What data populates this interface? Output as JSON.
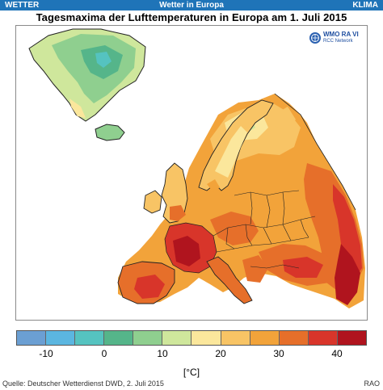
{
  "header": {
    "left_label": "WETTER",
    "center_label": "Wetter in Europa",
    "right_label": "KLIMA"
  },
  "title": "Tagesmaxima der Lufttemperaturen in Europa am 1. Juli 2015",
  "logo": {
    "line1": "WMO RA VI",
    "line2": "RCC Network",
    "icon": "wmo-emblem-icon"
  },
  "legend": {
    "unit": "[°C]",
    "ticks": [
      {
        "label": "-10",
        "value": -10
      },
      {
        "label": "0",
        "value": 0
      },
      {
        "label": "10",
        "value": 10
      },
      {
        "label": "20",
        "value": 20
      },
      {
        "label": "30",
        "value": 30
      },
      {
        "label": "40",
        "value": 40
      }
    ],
    "range": [
      -15,
      45
    ],
    "classes": [
      {
        "from": -15,
        "to": -10,
        "color": "#6b9fd3"
      },
      {
        "from": -10,
        "to": -5,
        "color": "#5bb6e0"
      },
      {
        "from": -5,
        "to": 0,
        "color": "#55c3c0"
      },
      {
        "from": 0,
        "to": 5,
        "color": "#55b58a"
      },
      {
        "from": 5,
        "to": 10,
        "color": "#8fcf8f"
      },
      {
        "from": 10,
        "to": 15,
        "color": "#cfe79c"
      },
      {
        "from": 15,
        "to": 20,
        "color": "#fbe79c"
      },
      {
        "from": 20,
        "to": 25,
        "color": "#f8c465"
      },
      {
        "from": 25,
        "to": 30,
        "color": "#f2a33a"
      },
      {
        "from": 30,
        "to": 35,
        "color": "#e66f2a"
      },
      {
        "from": 35,
        "to": 40,
        "color": "#d8352a"
      },
      {
        "from": 40,
        "to": 45,
        "color": "#b0141e"
      }
    ]
  },
  "footer": {
    "source": "Quelle: Deutscher Wetterdienst DWD, 2. Juli 2015",
    "code": "RAO"
  }
}
